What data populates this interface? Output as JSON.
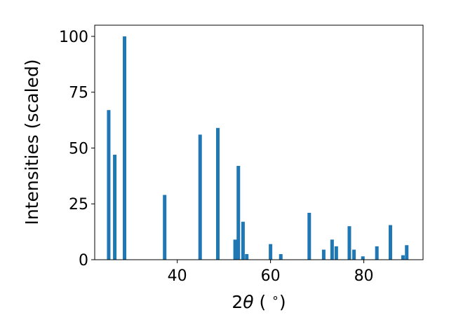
{
  "chart_data": {
    "type": "bar",
    "xlabel_parts": {
      "prefix": "2",
      "symbol": "θ",
      "suffix": " ( ",
      "superscript": "∘",
      "close": ")"
    },
    "ylabel": "Intensities (scaled)",
    "xlim": [
      22.3,
      92.7
    ],
    "ylim": [
      0,
      105
    ],
    "xticks": [
      40,
      60,
      80
    ],
    "yticks": [
      0,
      25,
      50,
      75,
      100
    ],
    "bar_color": "#1f77b4",
    "grid": false,
    "series": [
      {
        "x": [
          25.3,
          26.6,
          28.7,
          37.3,
          44.9,
          48.7,
          52.4,
          53.1,
          54.1,
          54.9,
          60.0,
          62.2,
          68.3,
          71.4,
          73.2,
          74.1,
          76.9,
          77.9,
          79.8,
          82.8,
          85.7,
          88.4,
          89.2
        ],
        "values": [
          67,
          47,
          100,
          29,
          56,
          59,
          9,
          42,
          17,
          2.5,
          7,
          2.5,
          21,
          4.5,
          9,
          6,
          15,
          4.5,
          1.5,
          6,
          15.5,
          2,
          6.5
        ]
      }
    ]
  }
}
